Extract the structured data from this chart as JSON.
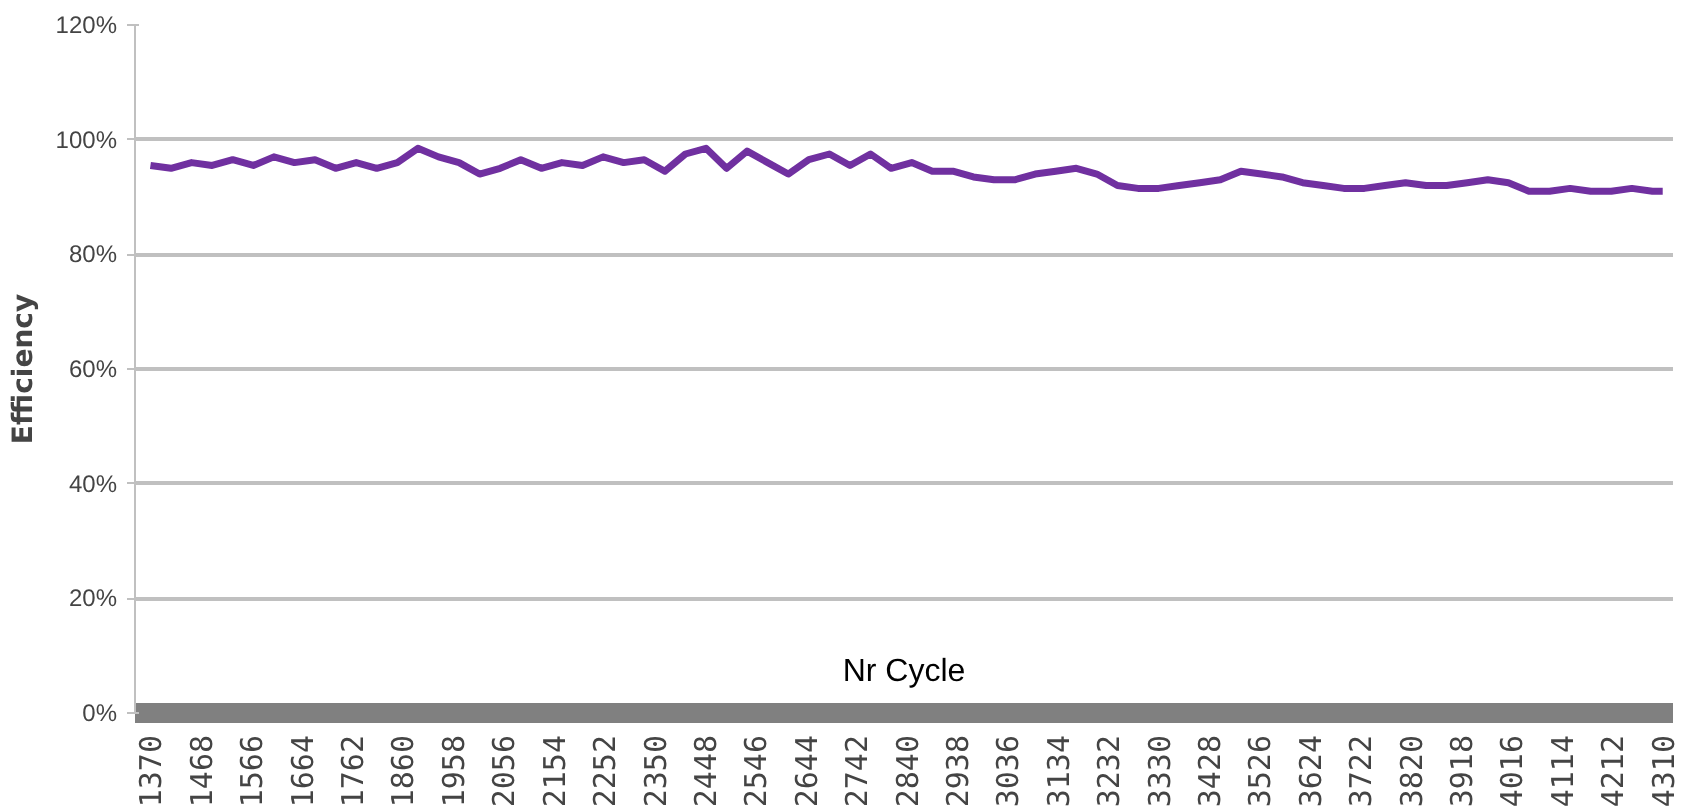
{
  "chart_data": {
    "type": "line",
    "xlabel": "Nr Cycle",
    "ylabel": "Efficiency",
    "x": [
      1370,
      1410,
      1450,
      1490,
      1530,
      1570,
      1610,
      1650,
      1690,
      1730,
      1770,
      1810,
      1850,
      1890,
      1930,
      1970,
      2010,
      2050,
      2090,
      2130,
      2170,
      2210,
      2250,
      2290,
      2330,
      2370,
      2410,
      2450,
      2490,
      2530,
      2570,
      2610,
      2650,
      2690,
      2730,
      2770,
      2810,
      2850,
      2890,
      2930,
      2970,
      3010,
      3050,
      3090,
      3130,
      3170,
      3210,
      3250,
      3290,
      3330,
      3370,
      3410,
      3450,
      3490,
      3530,
      3570,
      3610,
      3650,
      3690,
      3730,
      3770,
      3810,
      3850,
      3890,
      3930,
      3970,
      4010,
      4050,
      4090,
      4130,
      4170,
      4210,
      4250,
      4290,
      4310
    ],
    "series": [
      {
        "color": "#7030a0",
        "values": [
          95.5,
          95,
          96,
          95.5,
          96.5,
          95.5,
          97,
          96,
          96.5,
          95,
          96,
          95,
          96,
          98.5,
          97,
          96,
          94,
          95,
          96.5,
          95,
          96,
          95.5,
          97,
          96,
          96.5,
          94.5,
          97.5,
          98.5,
          95,
          98,
          96,
          94,
          96.5,
          97.5,
          95.5,
          97.5,
          95,
          96,
          94.5,
          94.5,
          93.5,
          93,
          93,
          94,
          94.5,
          95,
          94,
          92,
          91.5,
          91.5,
          92,
          92.5,
          93,
          94.5,
          94,
          93.5,
          92.5,
          92,
          91.5,
          91.5,
          92,
          92.5,
          92,
          92,
          92.5,
          93,
          92.5,
          91,
          91,
          91.5,
          91,
          91,
          91.5,
          91,
          91
        ]
      }
    ],
    "xlim": [
      1340,
      4330
    ],
    "xticks": [
      1370,
      1468,
      1566,
      1664,
      1762,
      1860,
      1958,
      2056,
      2154,
      2252,
      2350,
      2448,
      2546,
      2644,
      2742,
      2840,
      2938,
      3036,
      3134,
      3232,
      3330,
      3428,
      3526,
      3624,
      3722,
      3820,
      3918,
      4016,
      4114,
      4212,
      4310
    ],
    "ylim": [
      0,
      120
    ],
    "yticks": [
      {
        "value": 0,
        "label": "0%"
      },
      {
        "value": 20,
        "label": "20%"
      },
      {
        "value": 40,
        "label": "40%"
      },
      {
        "value": 60,
        "label": "60%"
      },
      {
        "value": 80,
        "label": "80%"
      },
      {
        "value": 100,
        "label": "100%"
      },
      {
        "value": 120,
        "label": "120%"
      }
    ],
    "grid": "y",
    "marker": "none",
    "line_style": "solid"
  }
}
